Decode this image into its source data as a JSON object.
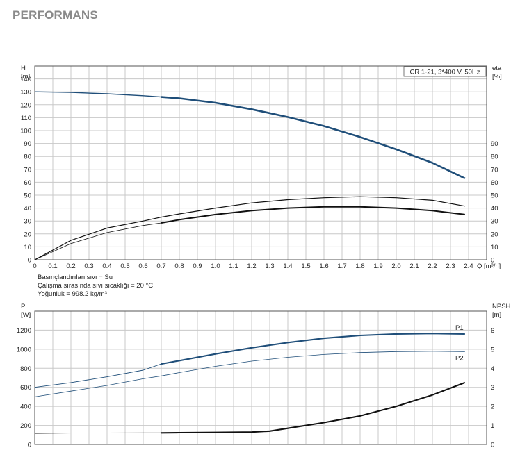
{
  "page": {
    "title": "PERFORMANS"
  },
  "chart_data": [
    {
      "type": "line",
      "legend_box": "CR 1-21, 3*400 V, 50Hz",
      "xlabel": "Q [m³/h]",
      "x_label_main": "Q",
      "x_label_unit": "[m³/h]",
      "ylabel_left": [
        "H",
        "[m]"
      ],
      "ylabel_right": [
        "eta",
        "[%]"
      ],
      "xlim": [
        0,
        2.5
      ],
      "ylim_left": [
        0,
        150
      ],
      "ylim_right": [
        0,
        150
      ],
      "x_ticks": [
        "0",
        "0.1",
        "0.2",
        "0.3",
        "0.4",
        "0.5",
        "0.6",
        "0.7",
        "0.8",
        "0.9",
        "1.0",
        "1.1",
        "1.2",
        "1.3",
        "1.4",
        "1.5",
        "1.6",
        "1.7",
        "1.8",
        "1.9",
        "2.0",
        "2.1",
        "2.2",
        "2.3",
        "2.4"
      ],
      "y_ticks_left": [
        "0",
        "10",
        "20",
        "30",
        "40",
        "50",
        "60",
        "70",
        "80",
        "90",
        "100",
        "110",
        "120",
        "130",
        "140"
      ],
      "y_ticks_right": [
        "0",
        "10",
        "20",
        "30",
        "40",
        "50",
        "60",
        "70",
        "80",
        "90"
      ],
      "grid": true,
      "series": [
        {
          "name": "",
          "axis": "left",
          "color": "#1f4e79",
          "width": 1.4,
          "bold_from": 0.7,
          "x": [
            0,
            0.2,
            0.4,
            0.6,
            0.7,
            0.8,
            1.0,
            1.2,
            1.4,
            1.6,
            1.8,
            2.0,
            2.2,
            2.38
          ],
          "y": [
            130,
            129.5,
            128.5,
            127,
            126,
            125,
            121.5,
            116.5,
            110.5,
            103.5,
            95,
            85.5,
            75,
            63
          ]
        },
        {
          "name": "",
          "axis": "right",
          "color": "#111111",
          "width": 1.2,
          "bold_from": null,
          "x": [
            0,
            0.2,
            0.4,
            0.6,
            0.7,
            0.8,
            1.0,
            1.2,
            1.4,
            1.6,
            1.8,
            2.0,
            2.2,
            2.38
          ],
          "y": [
            0,
            15,
            24.5,
            30,
            33,
            35.5,
            40,
            44,
            46.5,
            48,
            48.8,
            48,
            46,
            41.5
          ]
        },
        {
          "name": "",
          "axis": "right",
          "color": "#111111",
          "width": 0.8,
          "bold_from": 0.7,
          "x": [
            0,
            0.2,
            0.4,
            0.6,
            0.7,
            0.8,
            1.0,
            1.2,
            1.4,
            1.6,
            1.8,
            2.0,
            2.2,
            2.38
          ],
          "y": [
            0,
            12.5,
            21,
            26.5,
            28.5,
            31,
            35,
            38,
            40,
            41,
            41,
            40,
            38,
            35
          ]
        }
      ]
    },
    {
      "type": "line",
      "xlabel": "",
      "ylabel_left": [
        "P",
        "[W]"
      ],
      "ylabel_right": [
        "NPSH",
        "[m]"
      ],
      "info_lines": [
        "Basınçlandırılan sıvı = Su",
        "Çalışma sırasında sıvı sıcaklığı = 20 °C",
        "Yoğunluk = 998.2 kg/m³"
      ],
      "xlim": [
        0,
        2.5
      ],
      "ylim_left": [
        0,
        1400
      ],
      "ylim_right": [
        0,
        7
      ],
      "y_ticks_left": [
        "0",
        "200",
        "400",
        "600",
        "800",
        "1000",
        "1200"
      ],
      "y_ticks_right": [
        "0",
        "1",
        "2",
        "3",
        "4",
        "5",
        "6"
      ],
      "grid": true,
      "series": [
        {
          "name": "P1",
          "axis": "left",
          "color": "#1f4e79",
          "width": 0.9,
          "bold_from": 0.7,
          "x": [
            0,
            0.2,
            0.4,
            0.6,
            0.7,
            0.8,
            1.0,
            1.2,
            1.4,
            1.6,
            1.8,
            2.0,
            2.2,
            2.38
          ],
          "y": [
            600,
            650,
            710,
            780,
            845,
            880,
            950,
            1015,
            1070,
            1115,
            1145,
            1160,
            1165,
            1160
          ]
        },
        {
          "name": "P2",
          "axis": "left",
          "color": "#1f4e79",
          "width": 0.8,
          "bold_from": null,
          "x": [
            0,
            0.2,
            0.4,
            0.6,
            0.7,
            0.8,
            1.0,
            1.2,
            1.4,
            1.6,
            1.8,
            2.0,
            2.2,
            2.38
          ],
          "y": [
            500,
            560,
            620,
            690,
            720,
            755,
            820,
            875,
            915,
            945,
            965,
            975,
            978,
            975
          ]
        },
        {
          "name": "",
          "axis": "right",
          "color": "#111111",
          "width": 0.9,
          "bold_from": 0.7,
          "x": [
            0,
            0.2,
            0.4,
            0.6,
            0.7,
            0.8,
            1.0,
            1.2,
            1.3,
            1.4,
            1.6,
            1.8,
            2.0,
            2.2,
            2.38
          ],
          "y": [
            0.58,
            0.6,
            0.6,
            0.61,
            0.61,
            0.62,
            0.63,
            0.65,
            0.7,
            0.85,
            1.15,
            1.5,
            2.0,
            2.6,
            3.25
          ]
        }
      ]
    }
  ]
}
